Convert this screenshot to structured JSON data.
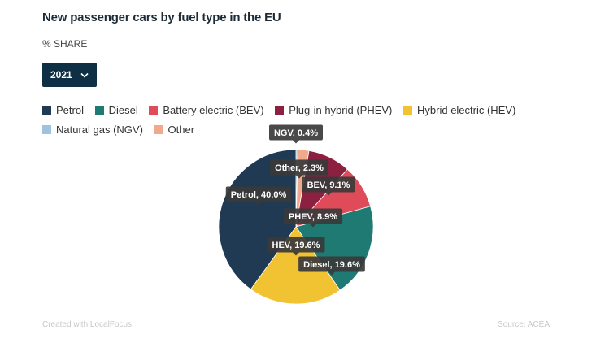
{
  "header": {
    "title": "New passenger cars by fuel type in the EU",
    "subtitle": "% SHARE"
  },
  "year_select": {
    "value": "2021",
    "icon": "chevron-down-icon"
  },
  "legend": [
    {
      "label": "Petrol",
      "color": "#1f3a52"
    },
    {
      "label": "Diesel",
      "color": "#1f7a73"
    },
    {
      "label": "Battery electric (BEV)",
      "color": "#e04b5a"
    },
    {
      "label": "Plug-in hybrid (PHEV)",
      "color": "#8b2040"
    },
    {
      "label": "Hybrid electric (HEV)",
      "color": "#f1c232"
    },
    {
      "label": "Natural gas (NGV)",
      "color": "#9dc3df"
    },
    {
      "label": "Other",
      "color": "#f0a98a"
    }
  ],
  "chart_data": {
    "type": "pie",
    "slices": [
      {
        "name": "NGV",
        "value": 0.4,
        "label": "NGV, 0.4%",
        "color": "#9dc3df"
      },
      {
        "name": "Other",
        "value": 2.3,
        "label": "Other, 2.3%",
        "color": "#f0a98a"
      },
      {
        "name": "PHEV",
        "value": 8.9,
        "label": "PHEV, 8.9%",
        "color": "#8b2040"
      },
      {
        "name": "BEV",
        "value": 9.1,
        "label": "BEV, 9.1%",
        "color": "#e04b5a"
      },
      {
        "name": "Diesel",
        "value": 19.6,
        "label": "Diesel, 19.6%",
        "color": "#1f7a73"
      },
      {
        "name": "HEV",
        "value": 19.6,
        "label": "HEV, 19.6%",
        "color": "#f1c232"
      },
      {
        "name": "Petrol",
        "value": 40.0,
        "label": "Petrol, 40.0%",
        "color": "#1f3a52"
      }
    ]
  },
  "footer": {
    "credit": "Created with LocalFocus",
    "source": "Source: ACEA"
  }
}
